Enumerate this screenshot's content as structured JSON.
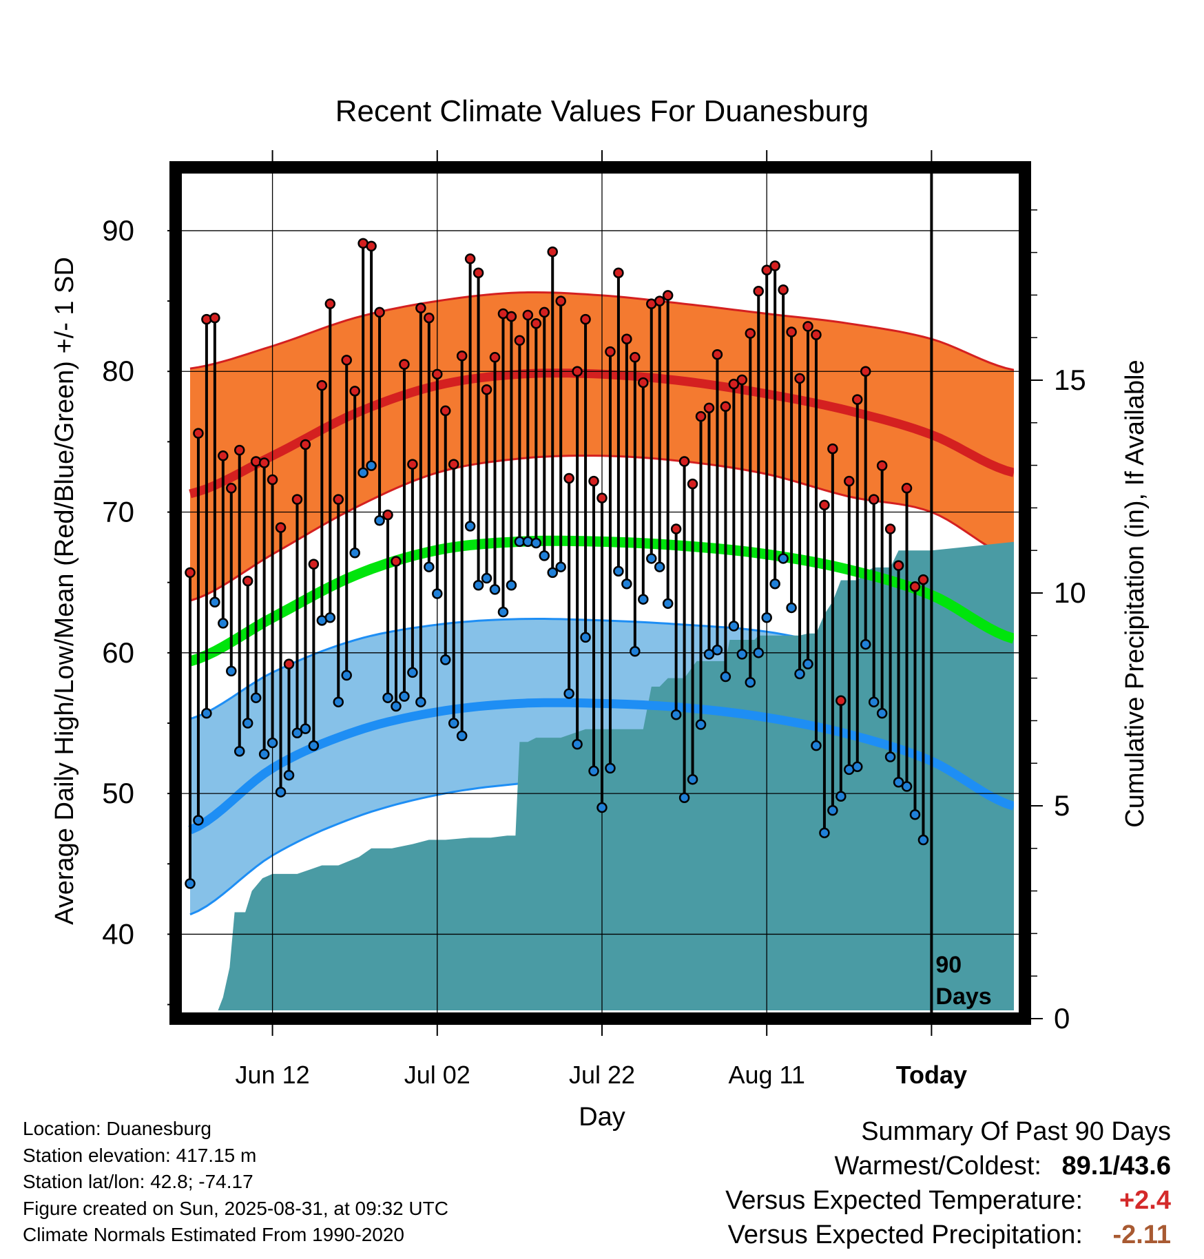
{
  "chart_data": {
    "type": "line",
    "title": "Recent Climate Values For Duanesburg",
    "xlabel": "Day",
    "ylabel": "Average Daily High/Low/Mean (Red/Blue/Green) +/- 1 SD",
    "y2label": "Cumulative Precipitation (in), If Available",
    "ylim": [
      34,
      94.5
    ],
    "y2lim": [
      0,
      20
    ],
    "xlim": [
      -10.5,
      90
    ],
    "yticks": [
      40,
      50,
      60,
      70,
      80,
      90
    ],
    "y2ticks": [
      0,
      5,
      10,
      15
    ],
    "xticks": [
      {
        "pos": 0,
        "label": "Jun 12"
      },
      {
        "pos": 20,
        "label": "Jul 02"
      },
      {
        "pos": 40,
        "label": "Jul 22"
      },
      {
        "pos": 60,
        "label": "Aug 11"
      },
      {
        "pos": 80,
        "label": "Today"
      }
    ],
    "today_marker": {
      "pos": 80,
      "label_line1": "90",
      "label_line2": "Days"
    },
    "grid": true,
    "normals": {
      "x": [
        -10,
        0,
        10,
        20,
        30,
        40,
        50,
        60,
        70,
        80,
        90
      ],
      "high_mean": [
        71.3,
        74.0,
        77.0,
        79.0,
        79.8,
        79.8,
        79.3,
        78.4,
        77.2,
        75.5,
        72.8
      ],
      "high_sd_upper": [
        80.2,
        81.8,
        83.8,
        85.0,
        85.6,
        85.4,
        84.8,
        84.1,
        83.4,
        82.3,
        80.1
      ],
      "high_sd_lower": [
        63.7,
        67.0,
        70.3,
        72.8,
        73.8,
        74.0,
        73.6,
        72.7,
        71.1,
        70.0,
        66.7
      ],
      "mean": [
        59.4,
        62.5,
        65.5,
        67.3,
        67.9,
        67.9,
        67.6,
        67.0,
        65.9,
        64.1,
        61.0
      ],
      "low_mean": [
        47.4,
        51.8,
        54.4,
        55.8,
        56.4,
        56.4,
        56.1,
        55.4,
        54.2,
        52.3,
        49.1
      ],
      "low_sd_upper": [
        55.3,
        58.6,
        60.9,
        62.0,
        62.4,
        62.3,
        62.0,
        61.5,
        60.3,
        58.9,
        56.8
      ],
      "low_sd_lower": [
        41.4,
        45.6,
        48.3,
        49.9,
        50.7,
        51.0,
        50.8,
        50.0,
        48.2,
        46.5,
        42.9
      ]
    },
    "series": [
      {
        "name": "High",
        "color": "#d42020",
        "values": [
          65.7,
          75.6,
          83.7,
          83.8,
          74.0,
          71.7,
          74.4,
          65.1,
          73.6,
          73.5,
          72.3,
          68.9,
          59.2,
          70.9,
          74.8,
          66.3,
          79.0,
          84.8,
          70.9,
          80.8,
          78.6,
          89.1,
          88.9,
          84.2,
          69.8,
          66.5,
          80.5,
          73.4,
          84.5,
          83.8,
          79.8,
          77.2,
          73.4,
          81.1,
          88.0,
          87.0,
          78.7,
          81.0,
          84.1,
          83.9,
          82.2,
          84.0,
          83.4,
          84.2,
          88.5,
          85.0,
          72.4,
          80.0,
          83.7,
          72.2,
          71.0,
          81.4,
          87.0,
          82.3,
          81.0,
          79.2,
          84.8,
          85.0,
          85.4,
          68.8,
          73.6,
          72.0,
          76.8,
          77.4,
          81.2,
          77.5,
          79.1,
          79.4,
          82.7,
          85.7,
          87.2,
          87.5,
          85.8,
          82.8,
          79.5,
          83.2,
          82.6,
          70.5,
          74.5,
          56.6,
          72.2,
          78.0,
          80.0,
          70.9,
          73.3,
          68.8,
          66.2,
          71.7,
          64.7,
          65.2
        ]
      },
      {
        "name": "Low",
        "color": "#2080d8",
        "values": [
          43.6,
          48.1,
          55.7,
          63.6,
          62.1,
          58.7,
          53.0,
          55.0,
          56.8,
          52.8,
          53.6,
          50.1,
          51.3,
          54.3,
          54.6,
          53.4,
          62.3,
          62.5,
          56.5,
          58.4,
          67.1,
          72.8,
          73.3,
          69.4,
          56.8,
          56.2,
          56.9,
          58.6,
          56.5,
          66.1,
          64.2,
          59.5,
          55.0,
          54.1,
          69.0,
          64.8,
          65.3,
          64.5,
          62.9,
          64.8,
          67.9,
          67.9,
          67.8,
          66.9,
          65.7,
          66.1,
          57.1,
          53.5,
          61.1,
          51.6,
          49.0,
          51.8,
          65.8,
          64.9,
          60.1,
          63.8,
          66.7,
          66.1,
          63.5,
          55.6,
          49.7,
          51.0,
          54.9,
          59.9,
          60.2,
          58.3,
          61.9,
          59.9,
          57.9,
          60.0,
          62.5,
          64.9,
          66.7,
          63.2,
          58.5,
          59.2,
          53.4,
          47.2,
          48.8,
          49.8,
          51.7,
          51.9,
          60.6,
          56.5,
          55.7,
          52.6,
          50.8,
          50.5,
          48.5,
          46.7
        ]
      }
    ],
    "precip_cumulative": {
      "x": [
        -10.5,
        -7,
        -6,
        -5.2,
        -4.6,
        -3.3,
        -2.5,
        -1.2,
        0,
        3,
        4.5,
        6,
        8,
        10.5,
        12,
        13,
        14.5,
        17,
        19,
        21,
        24,
        26.5,
        28.5,
        29.5,
        30,
        31,
        32,
        33,
        34,
        35,
        38,
        39,
        40,
        42,
        43.5,
        44,
        45,
        46,
        47,
        48,
        50,
        51.5,
        52,
        53,
        54,
        55,
        55.5,
        57,
        58.5,
        59,
        60,
        61,
        62,
        64,
        65,
        66,
        67,
        68,
        69,
        71,
        72,
        73,
        74.5,
        75,
        76,
        77,
        78,
        78.5,
        79,
        80,
        90
      ],
      "values": [
        0,
        0,
        0.5,
        1.2,
        2.5,
        2.5,
        3.0,
        3.3,
        3.4,
        3.4,
        3.5,
        3.6,
        3.6,
        3.8,
        4.0,
        4.0,
        4.0,
        4.1,
        4.2,
        4.2,
        4.25,
        4.25,
        4.3,
        4.3,
        6.5,
        6.5,
        6.6,
        6.6,
        6.6,
        6.6,
        6.8,
        6.8,
        6.8,
        6.8,
        6.8,
        6.8,
        6.8,
        7.8,
        7.8,
        8.0,
        8.0,
        8.4,
        8.4,
        8.4,
        8.4,
        8.4,
        8.9,
        8.9,
        8.9,
        9.0,
        9.0,
        9.0,
        9.0,
        9.0,
        9.05,
        9.05,
        9.5,
        9.8,
        10.3,
        10.3,
        10.5,
        10.6,
        10.6,
        10.6,
        11.0,
        11.0,
        11.0,
        11.0,
        11.0,
        11.0,
        11.2
      ]
    }
  },
  "footer": {
    "location": "Location: Duanesburg",
    "elevation": "Station elevation: 417.15 m",
    "latlon": "Station lat/lon: 42.8; -74.17",
    "created": "Figure created on Sun, 2025-08-31, at 09:32 UTC",
    "normals": "Climate Normals Estimated From 1990-2020"
  },
  "summary": {
    "heading": "Summary Of Past 90 Days",
    "warmest_label": "Warmest/Coldest:",
    "warmest_value": "89.1/43.6",
    "temp_label": "Versus Expected Temperature:",
    "temp_value": "+2.4",
    "temp_color": "#d42a2a",
    "precip_label": "Versus Expected Precipitation:",
    "precip_value": "-2.11",
    "precip_color": "#a85a32"
  },
  "colors": {
    "high_band": "#f47a30",
    "high_line": "#d42020",
    "low_band": "#86c1e8",
    "low_line": "#1e8ef4",
    "mean_line": "#00e40c",
    "precip": "#4a9ba4"
  }
}
